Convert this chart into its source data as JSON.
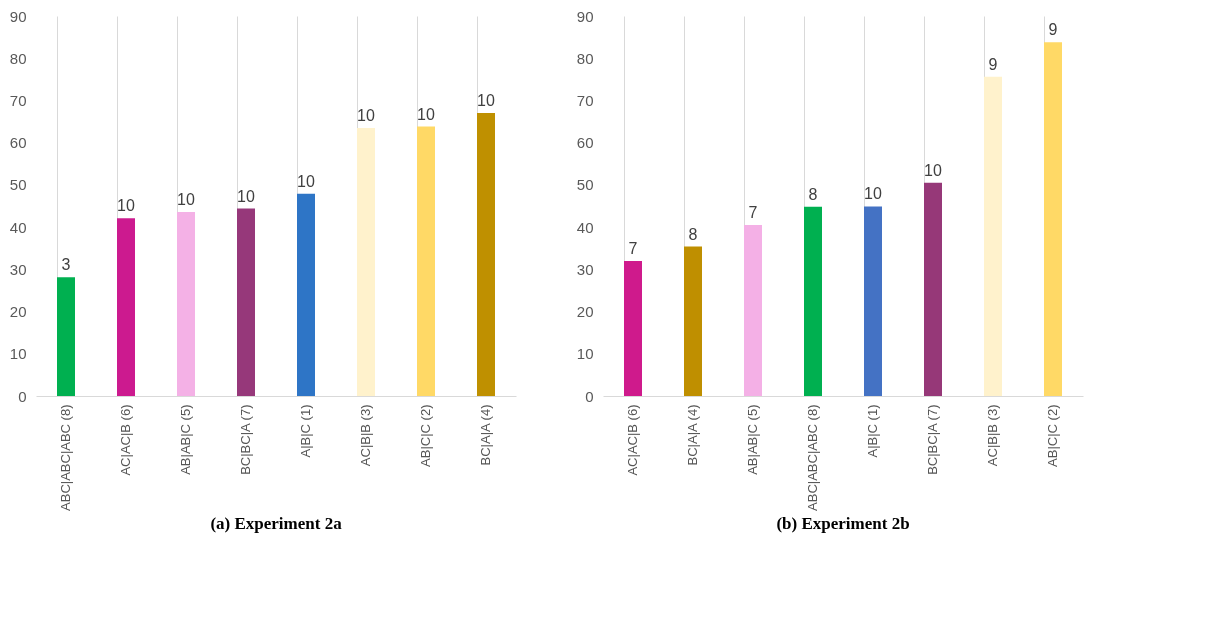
{
  "chart_data": [
    {
      "type": "bar",
      "title": "(a)   Experiment 2a",
      "categories": [
        "ABC|ABC|ABC (8)",
        "AC|AC|B  (6)",
        "AB|AB|C (5)",
        "BC|BC|A (7)",
        "A|B|C (1)",
        "AC|B|B (3)",
        "AB|C|C (2)",
        "BC|A|A (4)"
      ],
      "values": [
        28.1,
        42.1,
        43.6,
        44.4,
        47.9,
        63.5,
        63.8,
        67.0
      ],
      "colors": [
        "#00b050",
        "#cc1a8f",
        "#f4b1e6",
        "#96387a",
        "#2e75c6",
        "#fff2cc",
        "#ffd966",
        "#bf9000"
      ],
      "annotations": [
        {
          "text": "3",
          "x": "ABC|ABC|ABC (8)",
          "y": 28.1
        },
        {
          "text": "10",
          "x": "AC|AC|B  (6)",
          "y": 42.1
        },
        {
          "text": "10",
          "x": "AB|AB|C (5)",
          "y": 43.6
        },
        {
          "text": "10",
          "x": "BC|BC|A (7)",
          "y": 44.4
        },
        {
          "text": "10",
          "x": "A|B|C (1)",
          "y": 47.9
        },
        {
          "text": "10",
          "x": "AC|B|B (3)",
          "y": 63.5
        },
        {
          "text": "10",
          "x": "AB|C|C (2)",
          "y": 63.8
        },
        {
          "text": "10",
          "x": "BC|A|A (4)",
          "y": 67.0
        }
      ],
      "ylim": [
        0,
        90
      ],
      "yticks": [
        0,
        10,
        20,
        30,
        40,
        50,
        60,
        70,
        80,
        90
      ],
      "grid": "x"
    },
    {
      "type": "bar",
      "title": "(b)   Experiment 2b",
      "categories": [
        "AC|AC|B (6)",
        "BC|A|A (4)",
        "AB|AB|C (5)",
        "ABC|ABC|ABC (8)",
        "A|B|C (1)",
        "BC|BC|A (7)",
        "AC|B|B (3)",
        "AB|C|C (2)"
      ],
      "values": [
        32.0,
        35.4,
        40.5,
        44.8,
        44.9,
        50.5,
        75.6,
        83.8
      ],
      "colors": [
        "#cf1a8c",
        "#bf8f00",
        "#f4b0e6",
        "#00b050",
        "#4472c4",
        "#963878",
        "#fff2cc",
        "#ffd966"
      ],
      "annotations": [
        {
          "text": "7",
          "x": "AC|AC|B (6)",
          "y": 32.0
        },
        {
          "text": "8",
          "x": "BC|A|A (4)",
          "y": 35.4
        },
        {
          "text": "7",
          "x": "AB|AB|C (5)",
          "y": 40.5
        },
        {
          "text": "8",
          "x": "ABC|ABC|ABC (8)",
          "y": 44.8
        },
        {
          "text": "10",
          "x": "A|B|C (1)",
          "y": 44.9
        },
        {
          "text": "10",
          "x": "BC|BC|A (7)",
          "y": 50.5
        },
        {
          "text": "9",
          "x": "AC|B|B (3)",
          "y": 75.6
        },
        {
          "text": "9",
          "x": "AB|C|C (2)",
          "y": 83.8
        }
      ],
      "ylim": [
        0,
        90
      ],
      "yticks": [
        0,
        10,
        20,
        30,
        40,
        50,
        60,
        70,
        80,
        90
      ],
      "grid": "x"
    }
  ]
}
